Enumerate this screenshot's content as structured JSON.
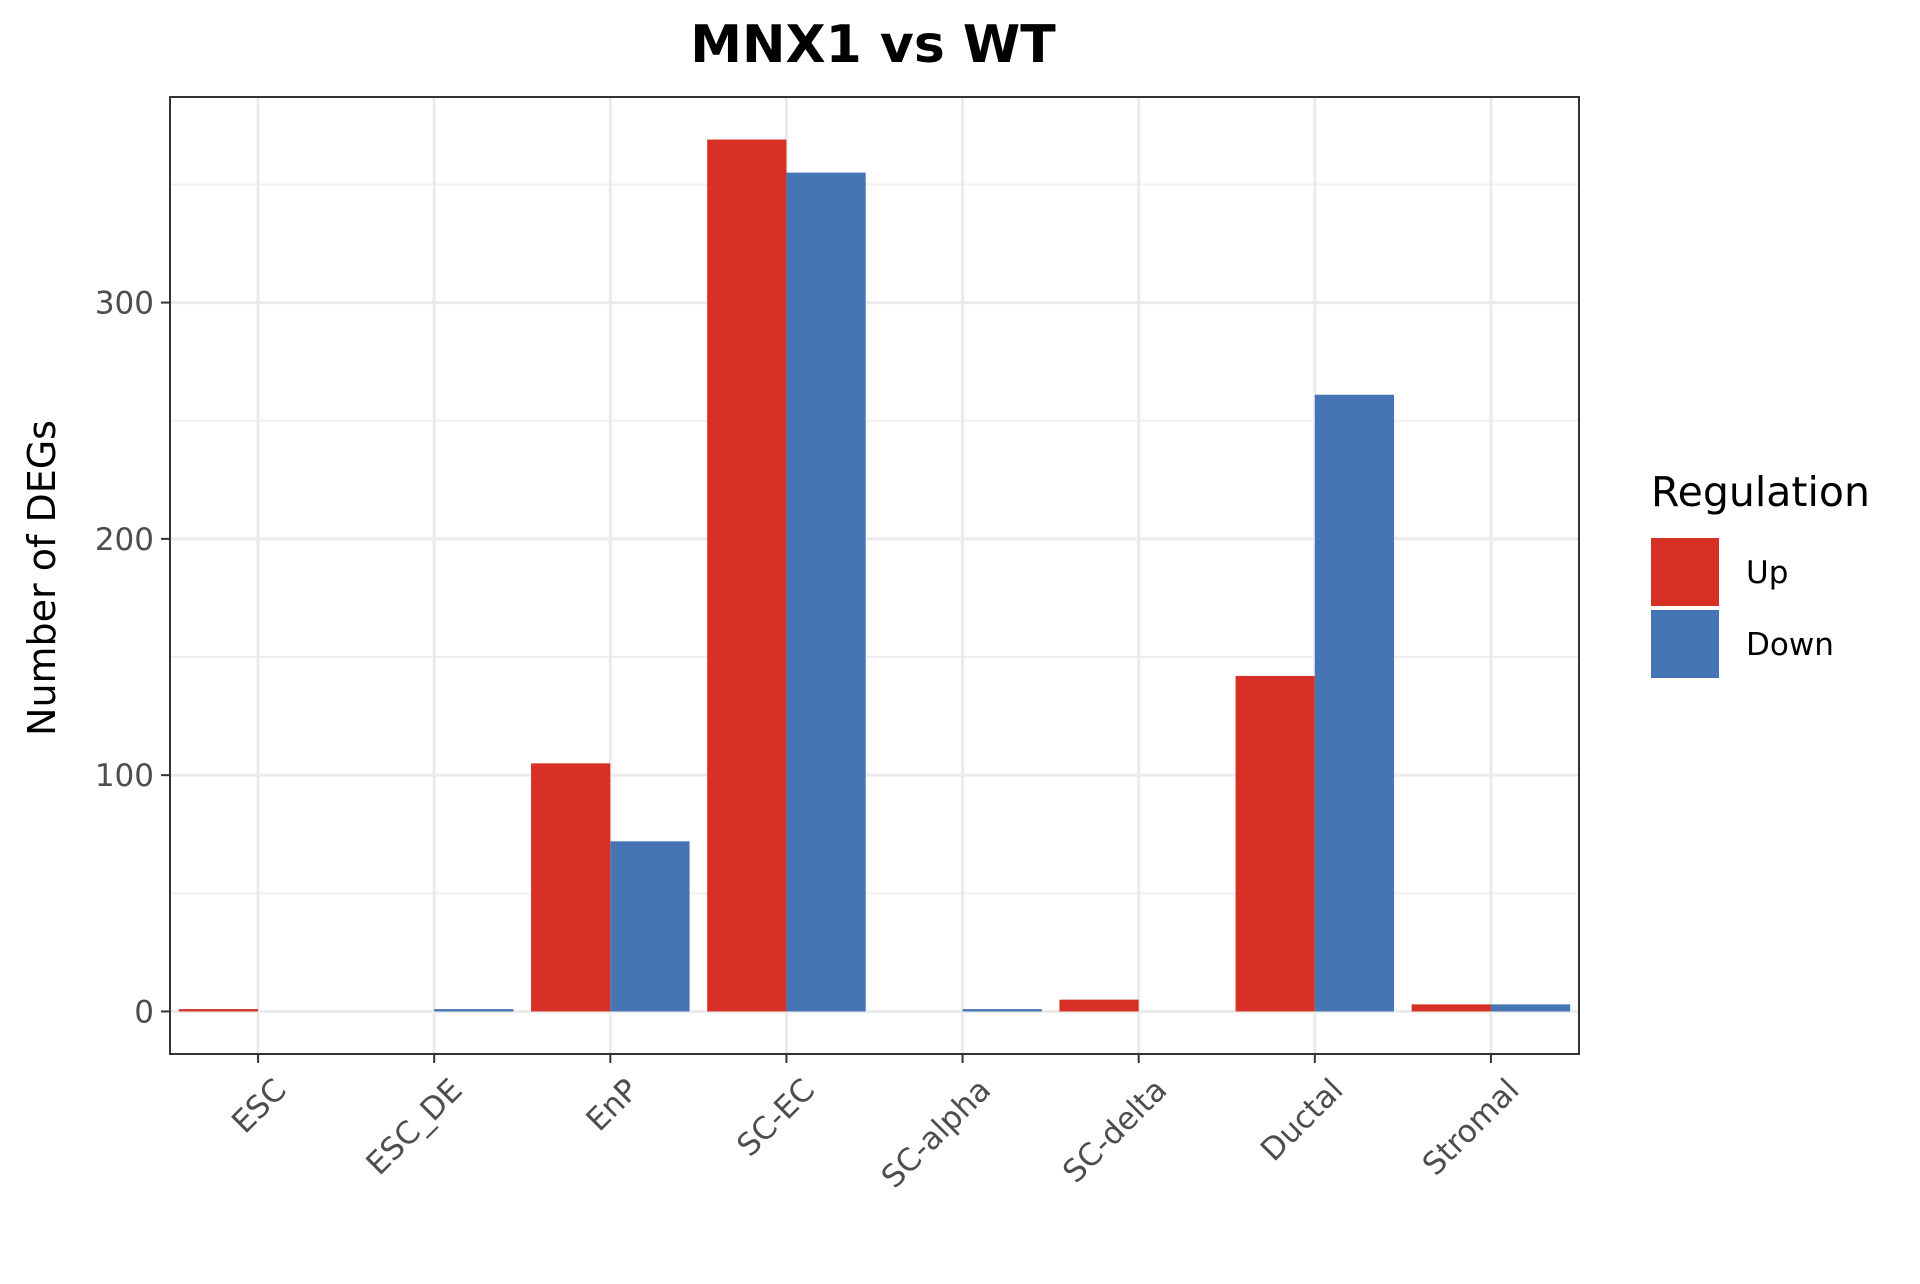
{
  "chart_data": {
    "type": "bar",
    "title": "MNX1 vs WT",
    "xlabel": "",
    "ylabel": "Number of DEGs",
    "categories": [
      "ESC",
      "ESC_DE",
      "EnP",
      "SC-EC",
      "SC-alpha",
      "SC-delta",
      "Ductal",
      "Stromal"
    ],
    "series": [
      {
        "name": "Up",
        "color": "#d73027",
        "values": [
          1,
          0,
          105,
          369,
          0,
          5,
          142,
          3
        ]
      },
      {
        "name": "Down",
        "color": "#4575b4",
        "values": [
          0,
          1,
          72,
          355,
          1,
          0,
          261,
          3
        ]
      }
    ],
    "ylim": [
      -18,
      387
    ],
    "yticks": [
      0,
      100,
      200,
      300
    ],
    "grid": true,
    "legend": {
      "title": "Regulation",
      "position": "right",
      "entries": [
        "Up",
        "Down"
      ]
    }
  }
}
